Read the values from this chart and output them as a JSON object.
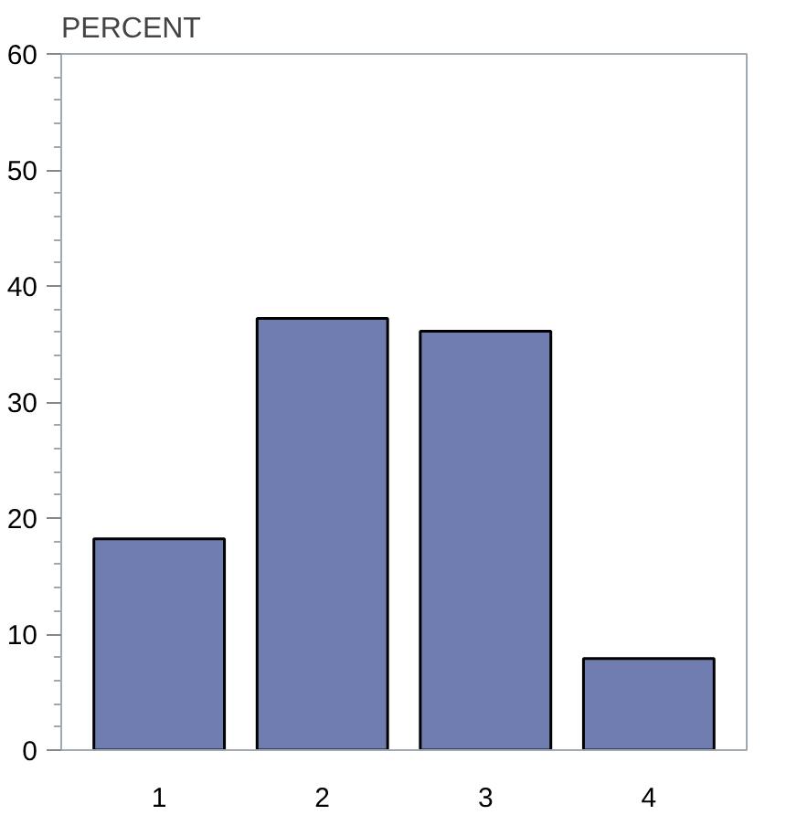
{
  "chart_data": {
    "type": "bar",
    "ylabel": "PERCENT",
    "categories": [
      "1",
      "2",
      "3",
      "4"
    ],
    "values": [
      18.2,
      37.2,
      36.1,
      7.9
    ],
    "color": "#6f7db0",
    "ylim": [
      0,
      60
    ],
    "yticks": [
      0,
      10,
      20,
      30,
      40,
      50,
      60
    ],
    "grid": false
  }
}
